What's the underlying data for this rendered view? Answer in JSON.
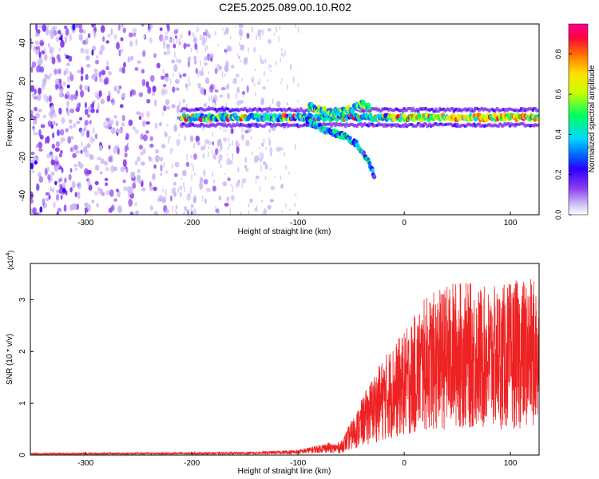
{
  "figure": {
    "title": "C2E5.2025.089.00.10.R02"
  },
  "colorbar": {
    "label": "Normalized spectral amplitude",
    "ticks": [
      "0.0",
      "0.2",
      "0.4",
      "0.6",
      "0.8"
    ],
    "range": [
      0,
      0.95
    ],
    "colors": [
      "#ffffff",
      "#c9b8f5",
      "#8a3cf0",
      "#2a00ff",
      "#0070ff",
      "#00d8ff",
      "#00ff60",
      "#c8ff00",
      "#ffe000",
      "#ff7000",
      "#ff0040",
      "#ff0090"
    ]
  },
  "chart_data": [
    {
      "type": "heatmap",
      "xlabel": "Height of straight line (km)",
      "ylabel": "Frequency (Hz)",
      "xlim": [
        -352,
        127
      ],
      "ylim": [
        -50,
        50
      ],
      "xticks": [
        "-300",
        "-200",
        "-100",
        "0",
        "100"
      ],
      "xtick_values": [
        -300,
        -200,
        -100,
        0,
        100
      ],
      "yticks": [
        "-40",
        "-20",
        "0",
        "20",
        "40"
      ],
      "ytick_values": [
        -40,
        -20,
        0,
        20,
        40
      ],
      "features": {
        "noise_region_x": [
          -352,
          -115
        ],
        "main_trace": {
          "x_start": -210,
          "x_end": 127,
          "frequency": 1
        },
        "branch_upper": [
          [
            -90,
            7
          ],
          [
            -80,
            5
          ],
          [
            -65,
            3
          ],
          [
            -50,
            5
          ],
          [
            -40,
            8
          ],
          [
            -33,
            7
          ]
        ],
        "branch_lower": [
          [
            -95,
            1
          ],
          [
            -85,
            -3
          ],
          [
            -72,
            -6
          ],
          [
            -55,
            -9
          ],
          [
            -45,
            -13
          ],
          [
            -38,
            -18
          ],
          [
            -32,
            -24
          ],
          [
            -28,
            -30
          ]
        ]
      }
    },
    {
      "type": "line",
      "xlabel": "Height of straight line (km)",
      "ylabel": "SNR (10 * v/v)",
      "y_multiplier": "(x10",
      "y_multiplier_exp": "4",
      "y_multiplier_close": ")",
      "xlim": [
        -352,
        127
      ],
      "ylim": [
        0,
        3.7
      ],
      "xticks": [
        "-300",
        "-200",
        "-100",
        "0",
        "100"
      ],
      "xtick_values": [
        -300,
        -200,
        -100,
        0,
        100
      ],
      "yticks": [
        "0",
        "1",
        "2",
        "3"
      ],
      "ytick_values": [
        0,
        1,
        2,
        3
      ],
      "series_color": "#ee2222",
      "envelope": [
        {
          "x": -352,
          "y": 0.02
        },
        {
          "x": -150,
          "y": 0.03
        },
        {
          "x": -100,
          "y": 0.05
        },
        {
          "x": -60,
          "y": 0.15
        },
        {
          "x": -45,
          "y": 0.5
        },
        {
          "x": -30,
          "y": 0.9
        },
        {
          "x": -15,
          "y": 1.2
        },
        {
          "x": 0,
          "y": 1.4
        },
        {
          "x": 20,
          "y": 1.8
        },
        {
          "x": 50,
          "y": 2.0
        },
        {
          "x": 80,
          "y": 1.9
        },
        {
          "x": 110,
          "y": 2.0
        },
        {
          "x": 127,
          "y": 2.0
        }
      ]
    }
  ]
}
